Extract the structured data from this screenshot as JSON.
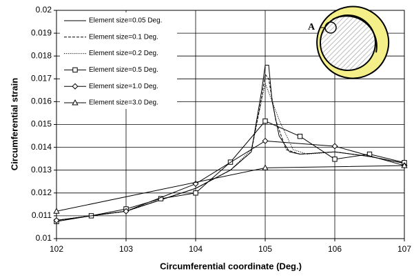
{
  "chart_data": {
    "type": "line",
    "x_label": "Circumferential coordinate (Deg.)",
    "y_label": "Circumferential strain",
    "inset_label": "A",
    "xlim": [
      102,
      107
    ],
    "xticks": [
      102,
      103,
      104,
      105,
      106,
      107
    ],
    "ylim": [
      0.01,
      0.02
    ],
    "yticks": [
      0.01,
      0.011,
      0.012,
      0.013,
      0.014,
      0.015,
      0.016,
      0.017,
      0.018,
      0.019,
      0.02
    ],
    "grid": true,
    "legend": "upper-left",
    "series": [
      {
        "name": "Element size=0.05 Deg.",
        "color": "#000000",
        "line_style": "solid",
        "marker": "none",
        "x": [
          102,
          102.5,
          103,
          103.5,
          104,
          104.5,
          104.8,
          104.95,
          105,
          105.05,
          105.1,
          105.2,
          105.35,
          105.5,
          106,
          106.5,
          107
        ],
        "values": [
          0.0108,
          0.011,
          0.0112,
          0.0117,
          0.0122,
          0.013,
          0.0138,
          0.0165,
          0.0176,
          0.0176,
          0.016,
          0.0145,
          0.0138,
          0.0137,
          0.0138,
          0.0136,
          0.0133
        ]
      },
      {
        "name": "Element size=0.1 Deg.",
        "color": "#000000",
        "line_style": "dashed",
        "marker": "none",
        "x": [
          102,
          102.5,
          103,
          103.5,
          104,
          104.5,
          104.8,
          104.95,
          105,
          105.05,
          105.15,
          105.3,
          105.5,
          106,
          106.5,
          107
        ],
        "values": [
          0.0108,
          0.011,
          0.0112,
          0.0117,
          0.0122,
          0.013,
          0.0138,
          0.0162,
          0.0172,
          0.017,
          0.0152,
          0.0139,
          0.0137,
          0.0138,
          0.0136,
          0.0133
        ]
      },
      {
        "name": "Element size=0.2 Deg.",
        "color": "#000000",
        "line_style": "dotted",
        "marker": "none",
        "x": [
          102,
          102.5,
          103,
          103.5,
          104,
          104.5,
          104.8,
          105,
          105.2,
          105.4,
          105.6,
          106,
          106.5,
          107
        ],
        "values": [
          0.0108,
          0.011,
          0.0112,
          0.0117,
          0.0122,
          0.013,
          0.0139,
          0.0168,
          0.0152,
          0.0139,
          0.0137,
          0.0138,
          0.0136,
          0.0133
        ]
      },
      {
        "name": "Element size=0.5 Deg.",
        "color": "#000000",
        "line_style": "solid",
        "marker": "square",
        "x": [
          102,
          102.5,
          103,
          103.5,
          104,
          104.5,
          105,
          105.5,
          106,
          106.5,
          107
        ],
        "values": [
          0.01075,
          0.011,
          0.0113,
          0.01175,
          0.012,
          0.01335,
          0.01515,
          0.01448,
          0.01348,
          0.0137,
          0.01333
        ]
      },
      {
        "name": "Element size=1.0 Deg.",
        "color": "#000000",
        "line_style": "solid",
        "marker": "diamond",
        "x": [
          102,
          103,
          104,
          105,
          106,
          107
        ],
        "values": [
          0.0108,
          0.0112,
          0.0124,
          0.01428,
          0.01405,
          0.0132
        ]
      },
      {
        "name": "Element size=3.0 Deg.",
        "color": "#000000",
        "line_style": "solid",
        "marker": "triangle",
        "x": [
          102,
          105,
          107
        ],
        "values": [
          0.0112,
          0.0131,
          0.0132
        ]
      }
    ]
  }
}
